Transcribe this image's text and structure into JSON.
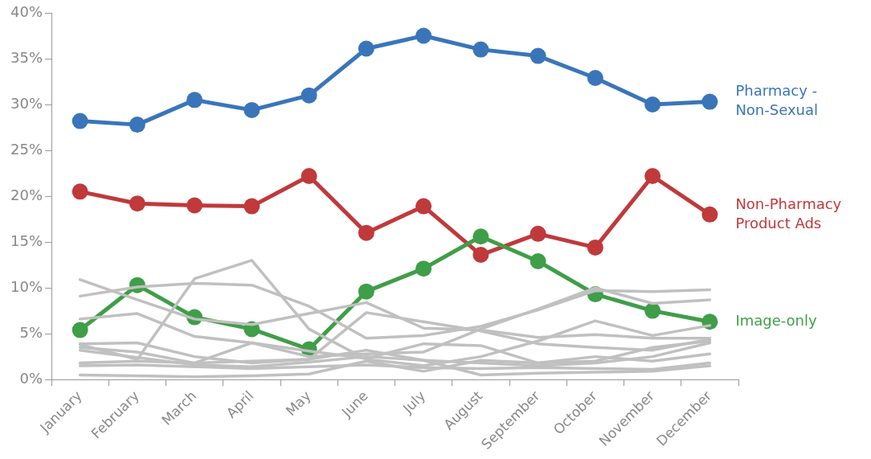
{
  "chart_data": {
    "type": "line",
    "categories": [
      "January",
      "February",
      "March",
      "April",
      "May",
      "June",
      "July",
      "August",
      "September",
      "October",
      "November",
      "December"
    ],
    "ylim": [
      0,
      40
    ],
    "yticks": [
      {
        "value": 0,
        "label": "0%"
      },
      {
        "value": 5,
        "label": "5%"
      },
      {
        "value": 10,
        "label": "10%"
      },
      {
        "value": 15,
        "label": "15%"
      },
      {
        "value": 20,
        "label": "20%"
      },
      {
        "value": 25,
        "label": "25%"
      },
      {
        "value": 30,
        "label": "30%"
      },
      {
        "value": 35,
        "label": "35%"
      },
      {
        "value": 40,
        "label": "40%"
      }
    ],
    "grid": false,
    "legend": false,
    "series": [
      {
        "color": "#c0c0c0",
        "marker": "none",
        "values": [
          10.9,
          8.7,
          6.6,
          6.0,
          7.2,
          8.4,
          5.6,
          5.4,
          4.6,
          4.9,
          4.5,
          4.5
        ]
      },
      {
        "color": "#c0c0c0",
        "marker": "none",
        "values": [
          9.1,
          10.1,
          10.5,
          10.3,
          8.0,
          4.5,
          4.8,
          5.8,
          7.6,
          9.7,
          9.6,
          9.8
        ]
      },
      {
        "color": "#c0c0c0",
        "marker": "none",
        "values": [
          6.6,
          7.2,
          4.7,
          4.0,
          2.5,
          2.8,
          3.0,
          5.5,
          7.7,
          10.0,
          8.3,
          8.7
        ]
      },
      {
        "color": "#c0c0c0",
        "marker": "none",
        "values": [
          3.8,
          2.2,
          11.0,
          13.0,
          5.5,
          2.2,
          1.5,
          2.5,
          4.2,
          6.4,
          4.8,
          5.9
        ]
      },
      {
        "color": "#c0c0c0",
        "marker": "none",
        "values": [
          3.9,
          4.0,
          2.5,
          1.8,
          2.2,
          7.3,
          6.3,
          5.3,
          3.9,
          3.5,
          3.2,
          4.4
        ]
      },
      {
        "color": "#c0c0c0",
        "marker": "none",
        "values": [
          3.2,
          2.4,
          1.6,
          1.4,
          1.9,
          2.5,
          2.1,
          1.8,
          1.5,
          1.8,
          2.5,
          4.0
        ]
      },
      {
        "color": "#c0c0c0",
        "marker": "none",
        "values": [
          1.8,
          2.0,
          1.8,
          2.0,
          2.2,
          3.2,
          2.1,
          0.5,
          0.7,
          0.8,
          0.9,
          1.5
        ]
      },
      {
        "color": "#c0c0c0",
        "marker": "none",
        "values": [
          1.5,
          1.6,
          1.4,
          1.2,
          1.4,
          1.6,
          1.3,
          1.2,
          1.3,
          1.2,
          1.1,
          1.8
        ]
      },
      {
        "color": "#c0c0c0",
        "marker": "none",
        "values": [
          0.5,
          0.4,
          0.3,
          0.4,
          0.6,
          2.0,
          0.9,
          2.1,
          1.8,
          2.5,
          2.0,
          2.8
        ]
      },
      {
        "color": "#c0c0c0",
        "marker": "none",
        "values": [
          3.5,
          3.0,
          1.8,
          4.0,
          3.1,
          2.3,
          3.9,
          3.7,
          1.8,
          2.0,
          3.5,
          4.2
        ]
      },
      {
        "name": "Image-only",
        "color": "#3f9e48",
        "marker": "circle",
        "values": [
          5.4,
          10.3,
          6.8,
          5.5,
          3.3,
          9.6,
          12.1,
          15.6,
          12.9,
          9.3,
          7.5,
          6.3
        ]
      },
      {
        "name": "Non-Pharmacy\nProduct Ads",
        "color": "#c0393b",
        "marker": "circle",
        "values": [
          20.5,
          19.2,
          19.0,
          18.9,
          22.2,
          16.0,
          18.9,
          13.6,
          15.9,
          14.4,
          22.2,
          18.0
        ]
      },
      {
        "name": "Pharmacy -\nNon-Sexual",
        "color": "#3a75ba",
        "marker": "circle",
        "values": [
          28.2,
          27.8,
          30.5,
          29.4,
          31.0,
          36.1,
          37.5,
          36.0,
          35.3,
          32.9,
          30.0,
          30.3
        ]
      }
    ]
  }
}
